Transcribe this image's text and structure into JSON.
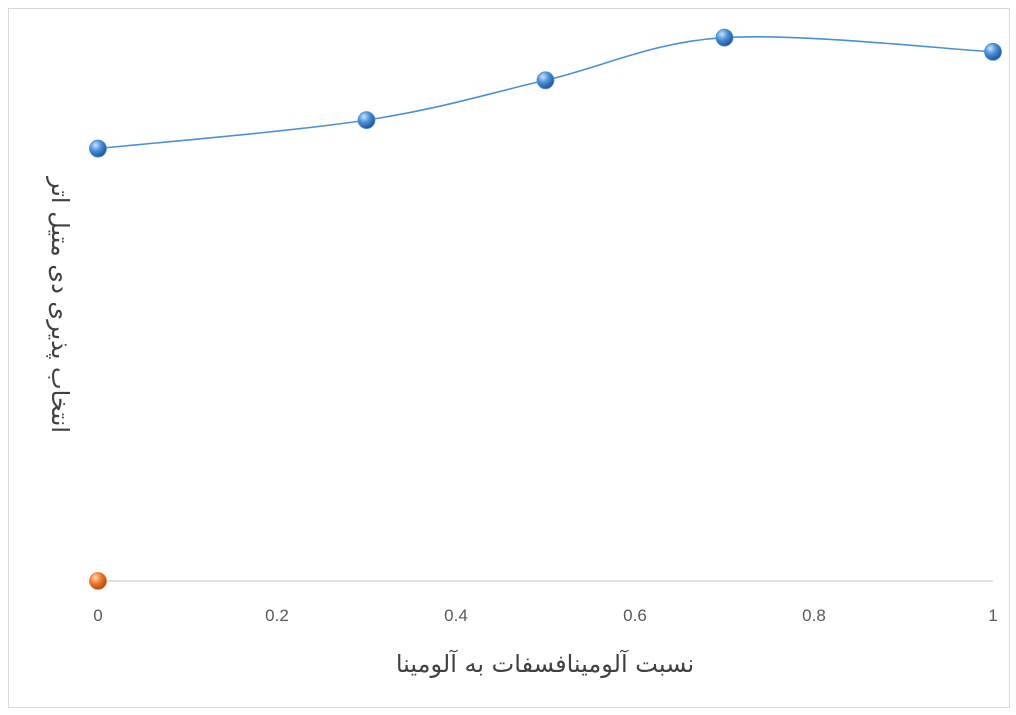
{
  "chart_data": {
    "type": "scatter",
    "title": "",
    "xlabel": "نسبت آلومینافسفات به آلومینا",
    "ylabel": "انتخاب پذیری دی متیل اتر",
    "xlim": [
      0,
      1
    ],
    "ylim": [
      0,
      100
    ],
    "x_ticks": [
      "0",
      "0.2",
      "0.4",
      "0.6",
      "0.8",
      "1"
    ],
    "grid": false,
    "legend": "none",
    "series": [
      {
        "color": "#4a90d9",
        "smooth": true,
        "points": [
          {
            "x": 0,
            "y": 76
          },
          {
            "x": 0.3,
            "y": 81
          },
          {
            "x": 0.5,
            "y": 88
          },
          {
            "x": 0.7,
            "y": 95.5
          },
          {
            "x": 1,
            "y": 93
          }
        ]
      },
      {
        "color": "#ed7d31",
        "smooth": false,
        "points": [
          {
            "x": 0,
            "y": 0
          }
        ]
      }
    ]
  }
}
